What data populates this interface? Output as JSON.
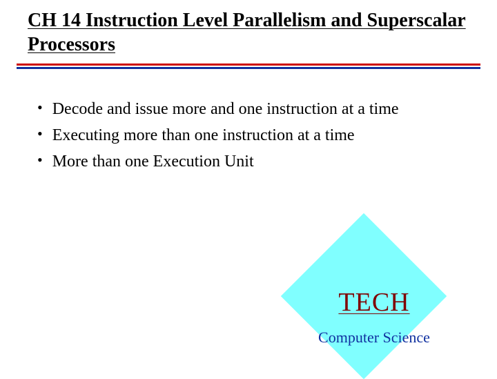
{
  "slide": {
    "title": "CH 14 Instruction Level Parallelism and Superscalar Processors",
    "title_fontsize": 28,
    "title_color": "#000000",
    "rule_colors": {
      "top": "#cc0000",
      "bottom": "#1030a0"
    },
    "bullets": [
      "Decode and issue more and one instruction at a time",
      "Executing more than one instruction at a time",
      "More than one Execution Unit"
    ],
    "bullet_fontsize": 24,
    "bullet_color": "#000000",
    "background_color": "#ffffff"
  },
  "badge": {
    "shape": "diamond",
    "fill_color": "#80ffff",
    "title": "TECH",
    "title_color": "#800000",
    "title_fontsize": 38,
    "subtitle": "Computer Science",
    "subtitle_color": "#1030a0",
    "subtitle_fontsize": 22
  }
}
